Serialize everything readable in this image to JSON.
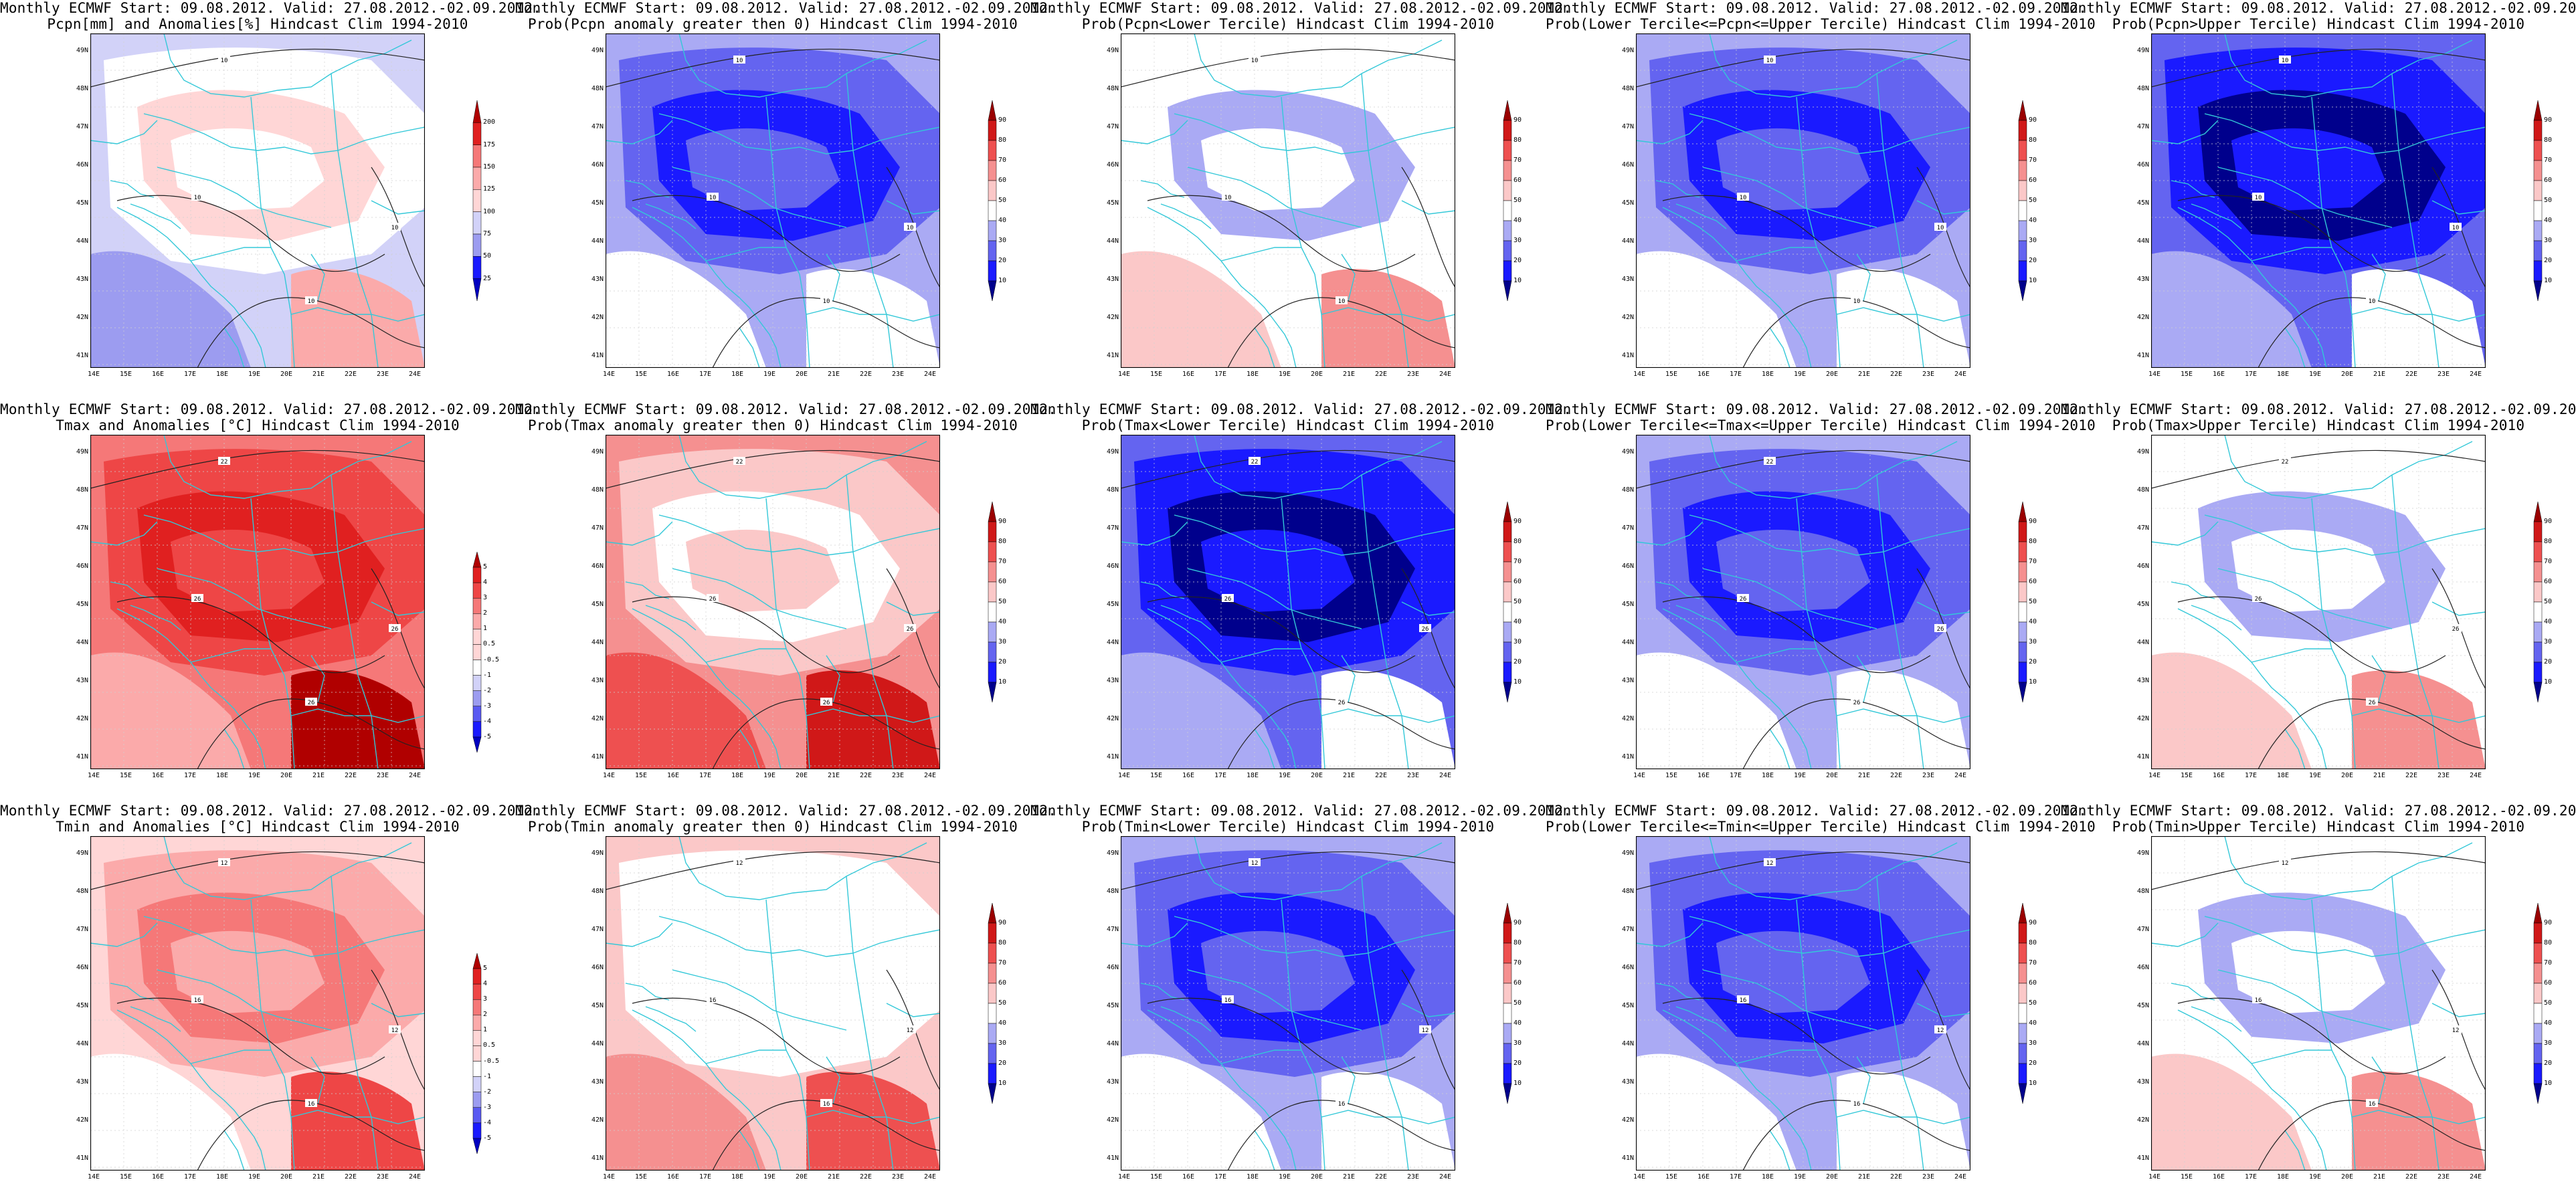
{
  "page": {
    "header_line": "Monthly ECMWF Start: 09.08.2012. Valid: 27.08.2012.-02.09.2012."
  },
  "axes": {
    "lat_labels": [
      "49N",
      "48N",
      "47N",
      "46N",
      "45N",
      "44N",
      "43N",
      "42N",
      "41N"
    ],
    "lon_labels": [
      "14E",
      "15E",
      "16E",
      "17E",
      "18E",
      "19E",
      "20E",
      "21E",
      "22E",
      "23E",
      "24E"
    ]
  },
  "colors": {
    "coast": "#33c8d8",
    "contour": "#222222",
    "anom_scale": [
      "#0000c0",
      "#1a1aff",
      "#5a5af2",
      "#9c9cf0",
      "#d2d2f8",
      "#ffffff",
      "#ffd6d6",
      "#fbaaaa",
      "#f57878",
      "#ee4646",
      "#e02020",
      "#b00000"
    ],
    "prob_scale": [
      "#00008c",
      "#1a1aff",
      "#6464f0",
      "#aaaaf4",
      "#ffffff",
      "#ffffff",
      "#fbc8c8",
      "#f59090",
      "#ee5050",
      "#d01818",
      "#9a0000"
    ]
  },
  "panels": [
    {
      "id": "pcpn-anom",
      "line2": "Pcpn[mm] and Anomalies[%] Hindcast Clim 1994-2010",
      "scale": "pcpn",
      "base": 4,
      "contours": [
        {
          "label": "10"
        },
        {
          "label": "10"
        },
        {
          "label": "10"
        },
        {
          "label": "10"
        }
      ]
    },
    {
      "id": "pcpn-prob-gt0",
      "line2": "Prob(Pcpn anomaly greater then 0) Hindcast Clim 1994-2010",
      "scale": "prob",
      "base": 3,
      "contours": [
        {
          "label": "10"
        },
        {
          "label": "10"
        },
        {
          "label": "10"
        },
        {
          "label": "10"
        }
      ]
    },
    {
      "id": "pcpn-prob-lower",
      "line2": "Prob(Pcpn<Lower Tercile) Hindcast Clim 1994-2010",
      "scale": "prob",
      "base": 5,
      "contours": [
        {
          "label": "10"
        },
        {
          "label": "10"
        },
        {
          "label": "10"
        }
      ]
    },
    {
      "id": "pcpn-prob-middle",
      "line2": "Prob(Lower Tercile<=Pcpn<=Upper Tercile) Hindcast Clim 1994-2010",
      "scale": "prob",
      "base": 3,
      "contours": [
        {
          "label": "10"
        },
        {
          "label": "10"
        },
        {
          "label": "10"
        },
        {
          "label": "10"
        }
      ]
    },
    {
      "id": "pcpn-prob-upper",
      "line2": "Prob(Pcpn>Upper Tercile) Hindcast Clim 1994-2010",
      "scale": "prob",
      "base": 2,
      "contours": [
        {
          "label": "10"
        },
        {
          "label": "10"
        },
        {
          "label": "10"
        },
        {
          "label": "10"
        }
      ]
    },
    {
      "id": "tmax-anom",
      "line2": "Tmax and Anomalies [°C] Hindcast Clim 1994-2010",
      "scale": "temp",
      "base": 8,
      "contours": [
        {
          "label": "22"
        },
        {
          "label": "26"
        },
        {
          "label": "26"
        },
        {
          "label": "26"
        }
      ]
    },
    {
      "id": "tmax-prob-gt0",
      "line2": "Prob(Tmax anomaly greater then 0) Hindcast Clim 1994-2010",
      "scale": "prob",
      "base": 7,
      "contours": [
        {
          "label": "22"
        },
        {
          "label": "26"
        },
        {
          "label": "26"
        },
        {
          "label": "26"
        }
      ]
    },
    {
      "id": "tmax-prob-lower",
      "line2": "Prob(Tmax<Lower Tercile) Hindcast Clim 1994-2010",
      "scale": "prob",
      "base": 2,
      "contours": [
        {
          "label": "22"
        },
        {
          "label": "26"
        },
        {
          "label": "26"
        },
        {
          "label": "26"
        }
      ]
    },
    {
      "id": "tmax-prob-middle",
      "line2": "Prob(Lower Tercile<=Tmax<=Upper Tercile) Hindcast Clim 1994-2010",
      "scale": "prob",
      "base": 3,
      "contours": [
        {
          "label": "22"
        },
        {
          "label": "26"
        },
        {
          "label": "26"
        },
        {
          "label": "26"
        }
      ]
    },
    {
      "id": "tmax-prob-upper",
      "line2": "Prob(Tmax>Upper Tercile) Hindcast Clim 1994-2010",
      "scale": "prob",
      "base": 5,
      "contours": [
        {
          "label": "22"
        },
        {
          "label": "26"
        },
        {
          "label": "26"
        },
        {
          "label": "26"
        }
      ]
    },
    {
      "id": "tmin-anom",
      "line2": "Tmin and Anomalies [°C] Hindcast Clim 1994-2010",
      "scale": "temp",
      "base": 6,
      "contours": [
        {
          "label": "12"
        },
        {
          "label": "16"
        },
        {
          "label": "16"
        },
        {
          "label": "12"
        }
      ]
    },
    {
      "id": "tmin-prob-gt0",
      "line2": "Prob(Tmin anomaly greater then 0) Hindcast Clim 1994-2010",
      "scale": "prob",
      "base": 6,
      "contours": [
        {
          "label": "12"
        },
        {
          "label": "16"
        },
        {
          "label": "16"
        },
        {
          "label": "12"
        }
      ]
    },
    {
      "id": "tmin-prob-lower",
      "line2": "Prob(Tmin<Lower Tercile) Hindcast Clim 1994-2010",
      "scale": "prob",
      "base": 3,
      "contours": [
        {
          "label": "12"
        },
        {
          "label": "16"
        },
        {
          "label": "16"
        },
        {
          "label": "12"
        }
      ]
    },
    {
      "id": "tmin-prob-middle",
      "line2": "Prob(Lower Tercile<=Tmin<=Upper Tercile) Hindcast Clim 1994-2010",
      "scale": "prob",
      "base": 3,
      "contours": [
        {
          "label": "12"
        },
        {
          "label": "16"
        },
        {
          "label": "16"
        },
        {
          "label": "12"
        }
      ]
    },
    {
      "id": "tmin-prob-upper",
      "line2": "Prob(Tmin>Upper Tercile) Hindcast Clim 1994-2010",
      "scale": "prob",
      "base": 5,
      "contours": [
        {
          "label": "12"
        },
        {
          "label": "16"
        },
        {
          "label": "16"
        },
        {
          "label": "12"
        }
      ]
    }
  ],
  "colorbars": {
    "pcpn": [
      "25",
      "50",
      "75",
      "100",
      "125",
      "150",
      "175",
      "200"
    ],
    "prob": [
      "10",
      "20",
      "30",
      "40",
      "50",
      "60",
      "70",
      "80",
      "90"
    ],
    "temp": [
      "-5",
      "-4",
      "-3",
      "-2",
      "-1",
      "-0.5",
      "0.5",
      "1",
      "2",
      "3",
      "4",
      "5"
    ]
  }
}
